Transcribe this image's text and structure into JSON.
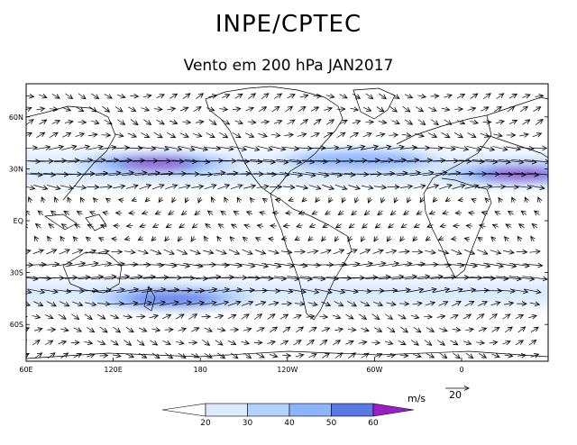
{
  "header": {
    "title": "INPE/CPTEC",
    "subtitle": "Vento em 200 hPa JAN2017"
  },
  "map": {
    "lat_labels": [
      "60N",
      "30N",
      "EQ",
      "30S",
      "60S"
    ],
    "lon_labels": [
      "120E",
      "180",
      "120W",
      "60W",
      "0",
      "60E"
    ],
    "jet_cores": [
      {
        "name": "north-pacific-jet",
        "lat": 33,
        "lon_center": 150,
        "max_speed": 65
      },
      {
        "name": "north-atlantic-jet",
        "lat": 35,
        "lon_center": -70,
        "max_speed": 40
      },
      {
        "name": "africa-asia-jet",
        "lat": 27,
        "lon_center": 40,
        "max_speed": 62
      },
      {
        "name": "south-pacific-jet",
        "lat": -45,
        "lon_center": 160,
        "max_speed": 55
      }
    ]
  },
  "legend": {
    "units_label": "m/s",
    "reference_vector_value": "20",
    "levels": [
      "20",
      "30",
      "40",
      "50",
      "60"
    ],
    "colors": [
      "#ffffff",
      "#dcebff",
      "#b4d2ff",
      "#8cb4ff",
      "#5a78e6",
      "#9b1fc8"
    ]
  }
}
